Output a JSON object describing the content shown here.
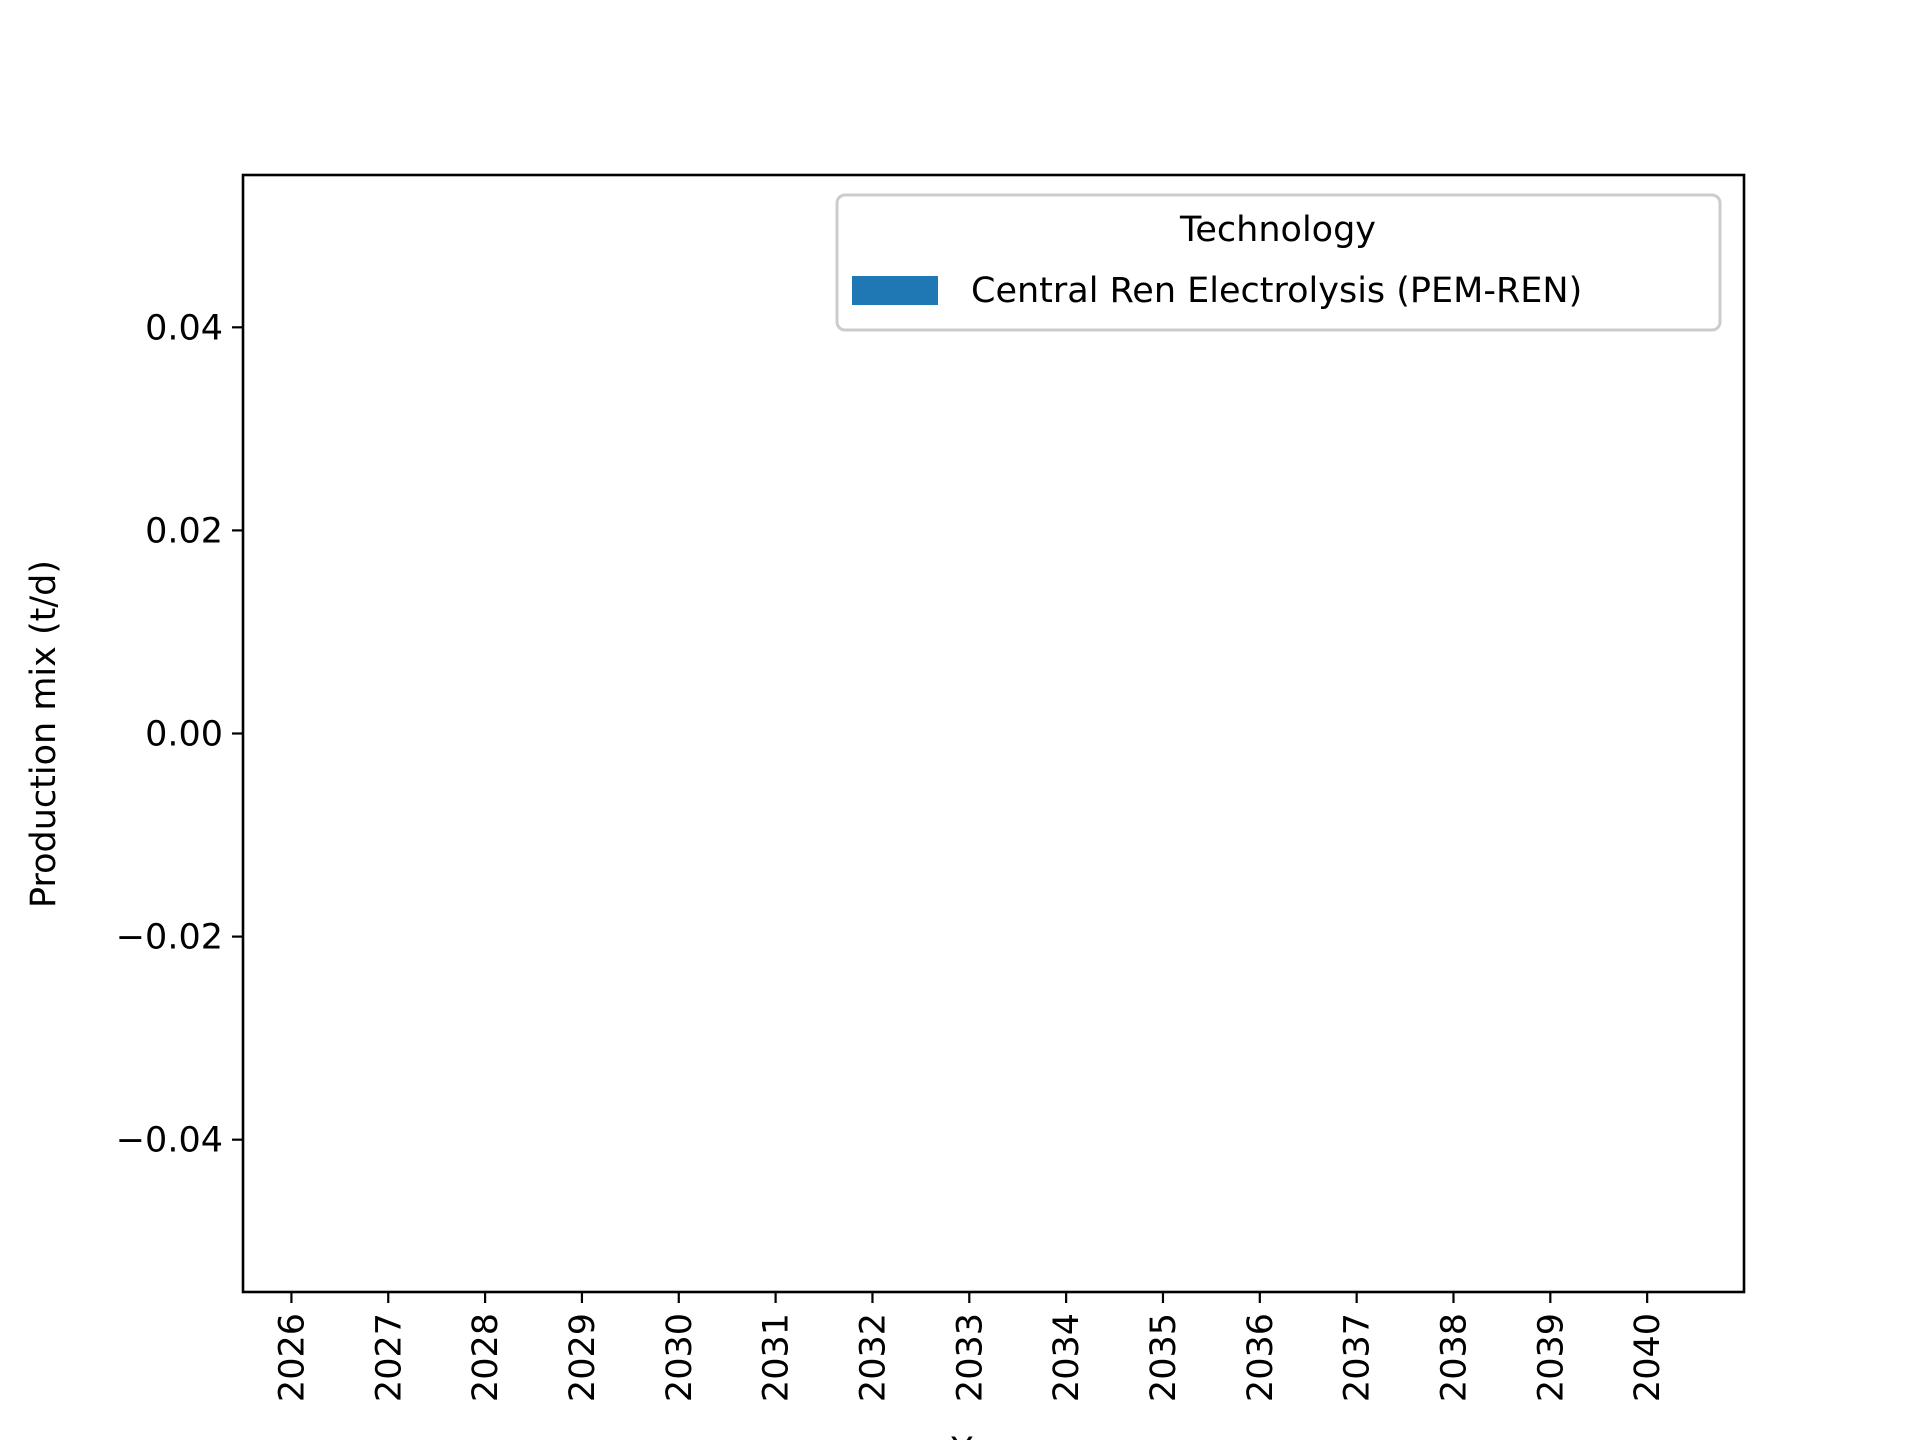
{
  "chart_data": {
    "type": "bar",
    "stacked": true,
    "categories": [
      "2026",
      "2027",
      "2028",
      "2029",
      "2030",
      "2031",
      "2032",
      "2033",
      "2034",
      "2035",
      "2036",
      "2037",
      "2038",
      "2039",
      "2040"
    ],
    "series": [
      {
        "name": "Central Ren Electrolysis (PEM-REN)",
        "values": [
          0,
          0,
          0,
          0,
          0,
          0,
          0,
          0,
          0,
          0,
          0,
          0,
          0,
          0,
          0
        ],
        "color": "#1f77b4"
      }
    ],
    "ylabel": "Production mix (t/d)",
    "xlabel": "Y",
    "ylim": [
      -0.055,
      0.055
    ],
    "yticks": [
      {
        "value": -0.04,
        "label": "−0.04"
      },
      {
        "value": -0.02,
        "label": "−0.02"
      },
      {
        "value": 0.0,
        "label": "0.00"
      },
      {
        "value": 0.02,
        "label": "0.02"
      },
      {
        "value": 0.04,
        "label": "0.04"
      }
    ],
    "legend": {
      "title": "Technology",
      "placement": "top-right"
    },
    "grid": false
  }
}
